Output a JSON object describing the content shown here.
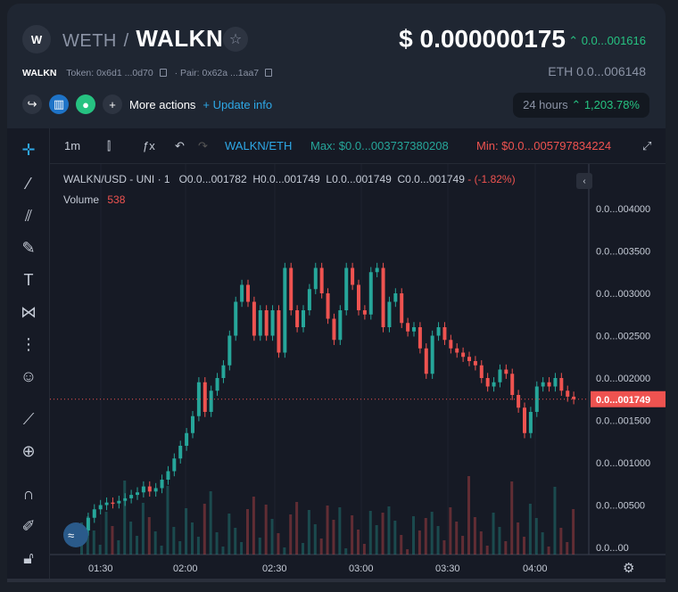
{
  "header": {
    "logo_letter": "W",
    "quote_symbol": "WETH",
    "separator": "/",
    "base_symbol": "WALKN",
    "price": "$ 0.000000175",
    "price_change": "0.0...001616",
    "token_name": "WALKN",
    "token_address": "Token: 0x6d1 ...0d70",
    "pair_address": "· Pair: 0x62a ...1aa7",
    "eth_price": "ETH  0.0...006148",
    "more_actions": "More actions",
    "update_info": "+ Update info",
    "period_label": "24 hours",
    "period_change": "1,203.78%"
  },
  "toolbar": {
    "interval": "1m",
    "pair": "WALKN/ETH",
    "max_label": "Max: $0.0...003737380208",
    "min_label": "Min: $0.0...005797834224"
  },
  "legend": {
    "symbol": "WALKN/USD - UNI · 1",
    "open": "O0.0...001782",
    "high": "H0.0...001749",
    "low": "L0.0...001749",
    "close": "C0.0...001749",
    "change": "- (-1.82%)",
    "volume_label": "Volume",
    "volume_value": "538"
  },
  "colors": {
    "up": "#26a69a",
    "down": "#ef5350",
    "accent": "#2ea8e6",
    "green": "#26c281"
  },
  "y_axis": [
    "0.0...004000",
    "0.0...003500",
    "0.0...003000",
    "0.0...002500",
    "0.0...002000",
    "0.0...001500",
    "0.0...001000",
    "0.0...00500",
    "0.0...00"
  ],
  "last_price_label": "0.0...001749",
  "x_axis": [
    "01:30",
    "02:00",
    "02:30",
    "03:00",
    "03:30",
    "04:00"
  ],
  "chart_data": {
    "type": "candlestick",
    "series": [
      {
        "x": "01:20",
        "o": 0.1,
        "c": 0.2
      },
      {
        "x": "01:22",
        "o": 0.2,
        "c": 0.35
      },
      {
        "x": "01:24",
        "o": 0.35,
        "c": 0.45
      },
      {
        "x": "01:26",
        "o": 0.45,
        "c": 0.5
      },
      {
        "x": "01:28",
        "o": 0.5,
        "c": 0.53
      },
      {
        "x": "01:30",
        "o": 0.53,
        "c": 0.52
      },
      {
        "x": "01:32",
        "o": 0.52,
        "c": 0.55
      },
      {
        "x": "01:34",
        "o": 0.55,
        "c": 0.58
      },
      {
        "x": "01:36",
        "o": 0.58,
        "c": 0.62
      },
      {
        "x": "01:38",
        "o": 0.62,
        "c": 0.65
      },
      {
        "x": "01:40",
        "o": 0.65,
        "c": 0.72
      },
      {
        "x": "01:42",
        "o": 0.72,
        "c": 0.66
      },
      {
        "x": "01:44",
        "o": 0.66,
        "c": 0.7
      },
      {
        "x": "01:46",
        "o": 0.7,
        "c": 0.8
      },
      {
        "x": "01:48",
        "o": 0.8,
        "c": 0.9
      },
      {
        "x": "01:50",
        "o": 0.9,
        "c": 1.05
      },
      {
        "x": "01:52",
        "o": 1.05,
        "c": 1.2
      },
      {
        "x": "01:54",
        "o": 1.2,
        "c": 1.35
      },
      {
        "x": "01:56",
        "o": 1.35,
        "c": 1.55
      },
      {
        "x": "01:58",
        "o": 1.55,
        "c": 1.95
      },
      {
        "x": "02:00",
        "o": 1.95,
        "c": 1.6
      },
      {
        "x": "02:02",
        "o": 1.6,
        "c": 1.85
      },
      {
        "x": "02:04",
        "o": 1.85,
        "c": 2.0
      },
      {
        "x": "02:06",
        "o": 2.0,
        "c": 2.15
      },
      {
        "x": "02:08",
        "o": 2.15,
        "c": 2.5
      },
      {
        "x": "02:10",
        "o": 2.5,
        "c": 2.9
      },
      {
        "x": "02:12",
        "o": 2.9,
        "c": 3.1
      },
      {
        "x": "02:14",
        "o": 3.1,
        "c": 2.9
      },
      {
        "x": "02:16",
        "o": 2.9,
        "c": 2.5
      },
      {
        "x": "02:18",
        "o": 2.5,
        "c": 2.8
      },
      {
        "x": "02:20",
        "o": 2.8,
        "c": 2.5
      },
      {
        "x": "02:22",
        "o": 2.5,
        "c": 2.8
      },
      {
        "x": "02:24",
        "o": 2.8,
        "c": 2.3
      },
      {
        "x": "02:26",
        "o": 2.3,
        "c": 3.3
      },
      {
        "x": "02:28",
        "o": 3.3,
        "c": 2.8
      },
      {
        "x": "02:30",
        "o": 2.8,
        "c": 2.6
      },
      {
        "x": "02:32",
        "o": 2.6,
        "c": 2.8
      },
      {
        "x": "02:34",
        "o": 2.8,
        "c": 3.05
      },
      {
        "x": "02:36",
        "o": 3.05,
        "c": 3.3
      },
      {
        "x": "02:38",
        "o": 3.3,
        "c": 3.0
      },
      {
        "x": "02:40",
        "o": 3.0,
        "c": 2.7
      },
      {
        "x": "02:42",
        "o": 2.7,
        "c": 2.45
      },
      {
        "x": "02:44",
        "o": 2.45,
        "c": 2.8
      },
      {
        "x": "02:46",
        "o": 2.8,
        "c": 3.3
      },
      {
        "x": "02:48",
        "o": 3.3,
        "c": 3.1
      },
      {
        "x": "02:50",
        "o": 3.1,
        "c": 2.8
      },
      {
        "x": "02:52",
        "o": 2.8,
        "c": 2.75
      },
      {
        "x": "02:54",
        "o": 2.75,
        "c": 3.25
      },
      {
        "x": "02:56",
        "o": 3.25,
        "c": 3.3
      },
      {
        "x": "02:58",
        "o": 3.3,
        "c": 2.6
      },
      {
        "x": "03:00",
        "o": 2.6,
        "c": 2.9
      },
      {
        "x": "03:02",
        "o": 2.9,
        "c": 3.0
      },
      {
        "x": "03:04",
        "o": 3.0,
        "c": 2.65
      },
      {
        "x": "03:06",
        "o": 2.65,
        "c": 2.55
      },
      {
        "x": "03:08",
        "o": 2.55,
        "c": 2.6
      },
      {
        "x": "03:10",
        "o": 2.6,
        "c": 2.35
      },
      {
        "x": "03:12",
        "o": 2.35,
        "c": 2.05
      },
      {
        "x": "03:14",
        "o": 2.05,
        "c": 2.5
      },
      {
        "x": "03:16",
        "o": 2.5,
        "c": 2.6
      },
      {
        "x": "03:18",
        "o": 2.6,
        "c": 2.45
      },
      {
        "x": "03:20",
        "o": 2.45,
        "c": 2.35
      },
      {
        "x": "03:22",
        "o": 2.35,
        "c": 2.3
      },
      {
        "x": "03:24",
        "o": 2.3,
        "c": 2.25
      },
      {
        "x": "03:26",
        "o": 2.25,
        "c": 2.2
      },
      {
        "x": "03:28",
        "o": 2.2,
        "c": 2.15
      },
      {
        "x": "03:30",
        "o": 2.15,
        "c": 2.0
      },
      {
        "x": "03:32",
        "o": 2.0,
        "c": 1.9
      },
      {
        "x": "03:34",
        "o": 1.9,
        "c": 1.95
      },
      {
        "x": "03:36",
        "o": 1.95,
        "c": 2.1
      },
      {
        "x": "03:38",
        "o": 2.1,
        "c": 2.05
      },
      {
        "x": "03:40",
        "o": 2.05,
        "c": 1.8
      },
      {
        "x": "03:42",
        "o": 1.8,
        "c": 1.65
      },
      {
        "x": "03:44",
        "o": 1.65,
        "c": 1.35
      },
      {
        "x": "03:46",
        "o": 1.35,
        "c": 1.6
      },
      {
        "x": "03:48",
        "o": 1.6,
        "c": 1.9
      },
      {
        "x": "03:50",
        "o": 1.9,
        "c": 1.95
      },
      {
        "x": "03:52",
        "o": 1.95,
        "c": 1.9
      },
      {
        "x": "03:54",
        "o": 1.9,
        "c": 2.0
      },
      {
        "x": "03:56",
        "o": 2.0,
        "c": 1.85
      },
      {
        "x": "03:58",
        "o": 1.85,
        "c": 1.78
      },
      {
        "x": "04:00",
        "o": 1.78,
        "c": 1.75
      }
    ],
    "y_unit_note": "0.0...00xx (thousandths)",
    "ylim": [
      0,
      4.2
    ]
  }
}
